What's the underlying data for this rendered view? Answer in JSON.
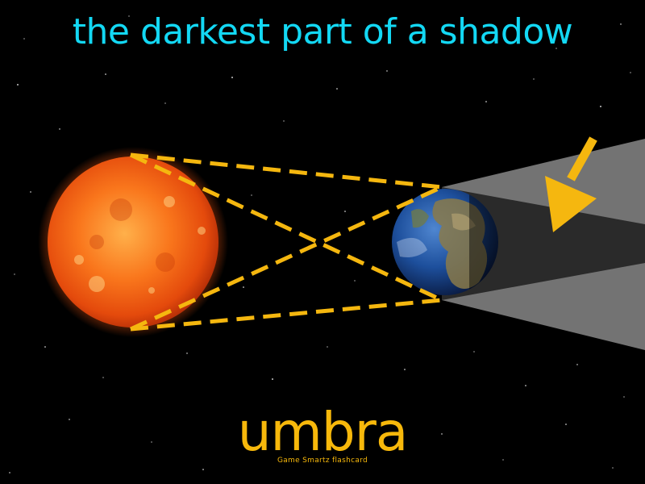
{
  "definition": "the darkest part of a shadow",
  "term": "umbra",
  "brand": "Game Smartz flashcard",
  "colors": {
    "background": "#000000",
    "definition_text": "#13d8f4",
    "term_text": "#f7b80b",
    "brand_text": "#f7b80b",
    "ray_lines": "#f5b70f",
    "arrow": "#f5b70f",
    "penumbra": "#7f7f7f",
    "umbra_shadow": "#2a2a2a",
    "sun": "#f05a12",
    "earth_ocean": "#1d4f9c"
  },
  "icons": {
    "sun": "sun-icon",
    "earth": "earth-icon",
    "pointer": "arrow-down-left-icon"
  }
}
